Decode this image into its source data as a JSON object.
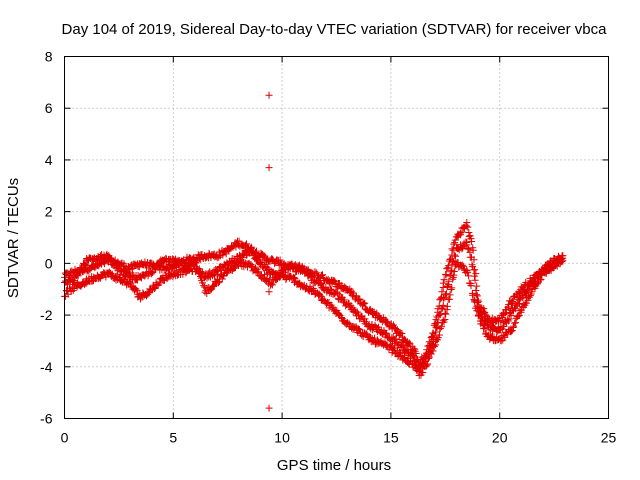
{
  "chart_data": {
    "type": "scatter",
    "title": "Day 104 of 2019, Sidereal Day-to-day VTEC variation (SDTVAR) for receiver vbca",
    "xlabel": "GPS time / hours",
    "ylabel": "SDTVAR / TECUs",
    "xlim": [
      0,
      25
    ],
    "ylim": [
      -6,
      8
    ],
    "xticks": [
      0,
      5,
      10,
      15,
      20,
      25
    ],
    "yticks": [
      -6,
      -4,
      -2,
      0,
      2,
      4,
      6,
      8
    ],
    "xtick_labels": [
      "0",
      "5",
      "10",
      "15",
      "20",
      "25"
    ],
    "ytick_labels": [
      "-6",
      "-4",
      "-2",
      "0",
      "2",
      "4",
      "6",
      "8"
    ],
    "grid": true,
    "marker": "+",
    "marker_color": "#e00000",
    "series": [
      {
        "name": "SDTVAR",
        "note": "dense overlapping tracks; values estimated from axes",
        "tracks": [
          [
            [
              0,
              -0.5
            ],
            [
              0.5,
              -0.3
            ],
            [
              1,
              -0.2
            ],
            [
              1.5,
              -0.1
            ],
            [
              2,
              0.1
            ],
            [
              2.5,
              0
            ],
            [
              3,
              -0.2
            ],
            [
              3.5,
              0
            ],
            [
              4,
              -0.1
            ],
            [
              4.5,
              -0.2
            ],
            [
              5,
              -0.1
            ],
            [
              5.5,
              0.1
            ],
            [
              6,
              0.2
            ],
            [
              6.5,
              0.3
            ],
            [
              7,
              0.3
            ],
            [
              7.5,
              0.5
            ],
            [
              8,
              0.8
            ],
            [
              8.5,
              0.6
            ],
            [
              9,
              0.3
            ],
            [
              9.5,
              0.1
            ],
            [
              10,
              0
            ],
            [
              10.5,
              -0.2
            ],
            [
              11,
              -0.3
            ],
            [
              11.5,
              -0.4
            ],
            [
              12,
              -0.6
            ],
            [
              12.5,
              -0.8
            ],
            [
              13,
              -1
            ],
            [
              13.5,
              -1.4
            ],
            [
              14,
              -1.8
            ],
            [
              14.5,
              -2.1
            ],
            [
              15,
              -2.4
            ],
            [
              15.5,
              -2.8
            ],
            [
              16,
              -3.3
            ],
            [
              16.3,
              -3.8
            ],
            [
              16.6,
              -3.6
            ],
            [
              17,
              -2.5
            ],
            [
              17.5,
              -0.5
            ],
            [
              18,
              1
            ],
            [
              18.5,
              1.5
            ],
            [
              18.8,
              0.5
            ],
            [
              19,
              -1.5
            ],
            [
              19.5,
              -2.2
            ],
            [
              20,
              -2.2
            ],
            [
              20.5,
              -1.5
            ],
            [
              21,
              -1
            ],
            [
              21.5,
              -0.6
            ],
            [
              22,
              -0.3
            ],
            [
              22.5,
              0
            ],
            [
              22.9,
              0.2
            ]
          ],
          [
            [
              0,
              -1.2
            ],
            [
              0.5,
              -0.9
            ],
            [
              1,
              -0.7
            ],
            [
              1.5,
              -0.5
            ],
            [
              2,
              -0.4
            ],
            [
              2.5,
              -0.6
            ],
            [
              3,
              -0.8
            ],
            [
              3.5,
              -1.3
            ],
            [
              4,
              -1
            ],
            [
              4.5,
              -0.6
            ],
            [
              5,
              -0.4
            ],
            [
              5.5,
              -0.3
            ],
            [
              6,
              -0.2
            ],
            [
              6.5,
              -0.5
            ],
            [
              7,
              -0.3
            ],
            [
              7.5,
              0
            ],
            [
              8,
              0.2
            ],
            [
              8.5,
              0.5
            ],
            [
              9,
              0
            ],
            [
              9.5,
              -0.4
            ],
            [
              10,
              -0.5
            ],
            [
              10.5,
              -0.6
            ],
            [
              11,
              -0.9
            ],
            [
              11.5,
              -1.1
            ],
            [
              12,
              -1.5
            ],
            [
              12.5,
              -1.9
            ],
            [
              13,
              -2.3
            ],
            [
              13.5,
              -2.6
            ],
            [
              14,
              -2.9
            ],
            [
              14.5,
              -3.1
            ],
            [
              15,
              -3.3
            ],
            [
              15.5,
              -3.6
            ],
            [
              16,
              -3.9
            ],
            [
              16.3,
              -4.3
            ],
            [
              16.6,
              -4
            ],
            [
              17,
              -3.2
            ],
            [
              17.5,
              -2
            ],
            [
              18,
              0
            ],
            [
              18.5,
              -0.3
            ],
            [
              18.8,
              -1.3
            ],
            [
              19,
              -2
            ],
            [
              19.5,
              -2.9
            ],
            [
              20,
              -3
            ],
            [
              20.5,
              -2.6
            ],
            [
              21,
              -1.8
            ],
            [
              21.5,
              -1
            ],
            [
              22,
              -0.4
            ],
            [
              22.5,
              -0.1
            ],
            [
              22.9,
              0.1
            ]
          ],
          [
            [
              0,
              -0.8
            ],
            [
              0.5,
              -0.6
            ],
            [
              1,
              0.1
            ],
            [
              1.5,
              0.2
            ],
            [
              2,
              0.3
            ],
            [
              2.5,
              -0.3
            ],
            [
              3,
              -0.5
            ],
            [
              3.5,
              -0.6
            ],
            [
              4,
              -0.3
            ],
            [
              4.5,
              0.1
            ],
            [
              5,
              0.2
            ],
            [
              5.5,
              -0.1
            ],
            [
              6,
              0
            ],
            [
              6.5,
              -1.1
            ],
            [
              7,
              -0.7
            ],
            [
              7.5,
              -0.3
            ],
            [
              8,
              0
            ],
            [
              8.5,
              -0.1
            ],
            [
              9,
              -0.4
            ],
            [
              9.5,
              -0.8
            ],
            [
              10,
              -0.3
            ],
            [
              10.5,
              -0.1
            ],
            [
              11,
              -0.2
            ],
            [
              11.5,
              -0.7
            ],
            [
              12,
              -1
            ],
            [
              12.5,
              -1.2
            ],
            [
              13,
              -1.6
            ],
            [
              13.5,
              -2
            ],
            [
              14,
              -2.4
            ],
            [
              14.5,
              -2.6
            ],
            [
              15,
              -2.9
            ],
            [
              15.5,
              -3.2
            ],
            [
              16,
              -3.6
            ],
            [
              16.3,
              -4.1
            ],
            [
              16.6,
              -3.8
            ],
            [
              17,
              -2.8
            ],
            [
              17.5,
              -1.2
            ],
            [
              18,
              0.5
            ],
            [
              18.5,
              0.8
            ],
            [
              18.8,
              -0.2
            ],
            [
              19,
              -1.8
            ],
            [
              19.5,
              -2.5
            ],
            [
              20,
              -2.6
            ],
            [
              20.5,
              -2
            ],
            [
              21,
              -1.3
            ],
            [
              21.5,
              -0.8
            ],
            [
              22,
              -0.2
            ],
            [
              22.5,
              0.1
            ],
            [
              22.9,
              0.3
            ]
          ]
        ],
        "outliers": [
          [
            9.4,
            6.5
          ],
          [
            9.4,
            3.7
          ],
          [
            9.4,
            -1.1
          ],
          [
            9.4,
            -5.6
          ]
        ]
      }
    ]
  }
}
